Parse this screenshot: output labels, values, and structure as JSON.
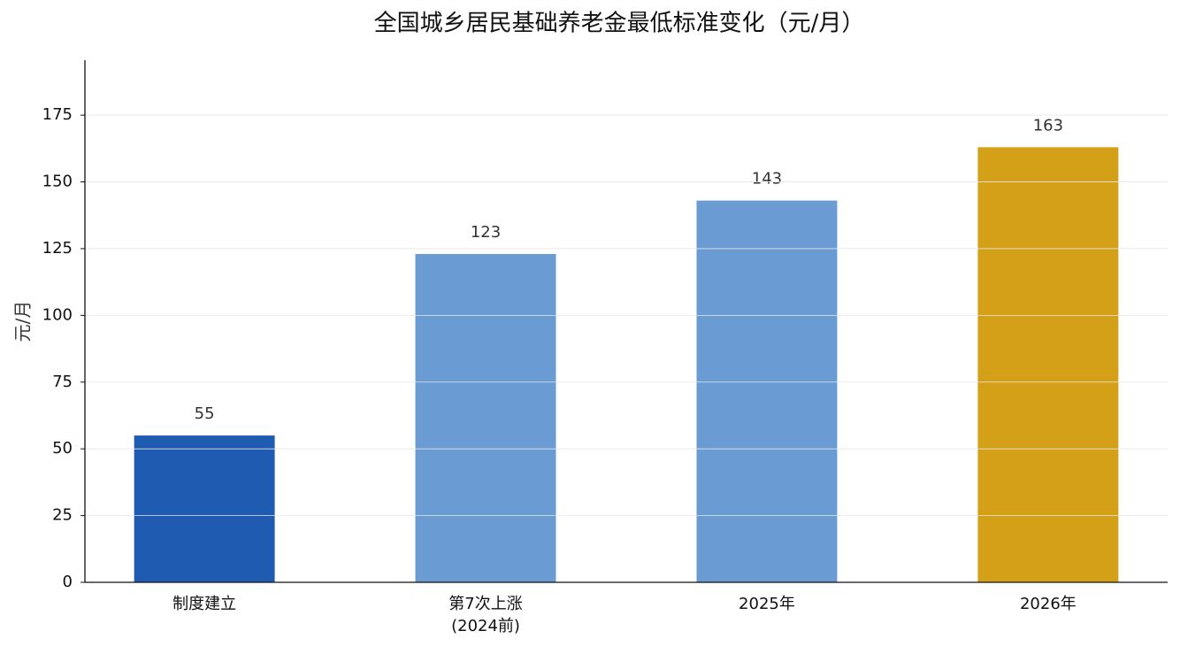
{
  "chart_data": {
    "type": "bar",
    "title": "全国城乡居民基础养老金最低标准变化（元/月）",
    "y_label": "元/月",
    "categories": [
      "制度建立",
      "第7次上涨\n(2024前)",
      "2025年",
      "2026年"
    ],
    "values": [
      55,
      123,
      143,
      163
    ],
    "colors": [
      "#1f5bb0",
      "#6b9bd3",
      "#6b9bd3",
      "#d4a017"
    ],
    "ylim": [
      0,
      195.6
    ],
    "yticks": [
      0,
      25,
      50,
      75,
      100,
      125,
      150,
      175
    ],
    "grid": true
  }
}
